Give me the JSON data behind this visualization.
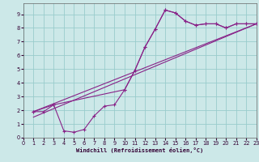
{
  "xlabel": "Windchill (Refroidissement éolien,°C)",
  "bg_color": "#cce8e8",
  "grid_color": "#99cccc",
  "line_color": "#882288",
  "xlim": [
    0,
    23
  ],
  "ylim": [
    0,
    9.8
  ],
  "xticks": [
    0,
    1,
    2,
    3,
    4,
    5,
    6,
    7,
    8,
    9,
    10,
    11,
    12,
    13,
    14,
    15,
    16,
    17,
    18,
    19,
    20,
    21,
    22,
    23
  ],
  "yticks": [
    0,
    1,
    2,
    3,
    4,
    5,
    6,
    7,
    8,
    9
  ],
  "line1_x": [
    1,
    2,
    3,
    4,
    5,
    6,
    7,
    8,
    9,
    10,
    11,
    12,
    13,
    14,
    15,
    16,
    17,
    18,
    19,
    20,
    21,
    22,
    23
  ],
  "line1_y": [
    1.9,
    1.9,
    2.4,
    0.5,
    0.4,
    0.6,
    1.6,
    2.3,
    2.4,
    3.5,
    4.9,
    6.6,
    7.9,
    9.3,
    9.1,
    8.5,
    8.2,
    8.3,
    8.3,
    8.0,
    8.3,
    8.3,
    8.3
  ],
  "line2_x": [
    1,
    3,
    10,
    11,
    12,
    13,
    14,
    15,
    16,
    17,
    18,
    19,
    20,
    21,
    22,
    23
  ],
  "line2_y": [
    1.9,
    2.4,
    3.5,
    4.9,
    6.6,
    7.9,
    9.3,
    9.1,
    8.5,
    8.2,
    8.3,
    8.3,
    8.0,
    8.3,
    8.3,
    8.3
  ],
  "line3_x": [
    1,
    23
  ],
  "line3_y": [
    1.9,
    8.3
  ],
  "line4_x": [
    1,
    23
  ],
  "line4_y": [
    1.5,
    8.3
  ]
}
